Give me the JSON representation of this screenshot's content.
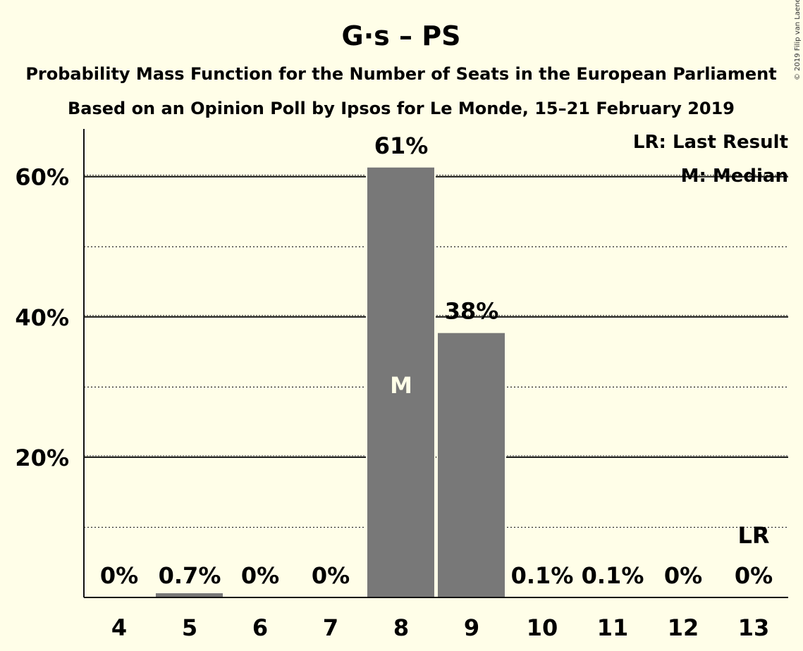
{
  "chart_data": {
    "type": "bar",
    "title": "G·s – PS",
    "subtitles": [
      "Probability Mass Function for the Number of Seats in the European Parliament",
      "Based on an Opinion Poll by Ipsos for Le Monde, 15–21 February 2019"
    ],
    "copyright": "© 2019 Filip van Laenen",
    "categories": [
      "4",
      "5",
      "6",
      "7",
      "8",
      "9",
      "10",
      "11",
      "12",
      "13"
    ],
    "values": [
      0,
      0.7,
      0,
      0,
      61.4,
      37.8,
      0.1,
      0.1,
      0,
      0
    ],
    "value_labels": [
      "0%",
      "0.7%",
      "0%",
      "0%",
      "61%",
      "38%",
      "0.1%",
      "0.1%",
      "0%",
      "0%"
    ],
    "ylim": [
      0,
      66.8
    ],
    "y_ticks": [
      {
        "value": 20,
        "label": "20%"
      },
      {
        "value": 40,
        "label": "40%"
      },
      {
        "value": 60,
        "label": "60%"
      }
    ],
    "minor_gridlines": [
      10,
      30,
      50
    ],
    "median_category": "8",
    "median_marker": "M",
    "last_result_category": "13",
    "last_result_marker": "LR",
    "legend": [
      "LR: Last Result",
      "M: Median"
    ],
    "legend_position": "top-right",
    "bar_color": "#787878",
    "background_color": "#FFFEE8"
  }
}
